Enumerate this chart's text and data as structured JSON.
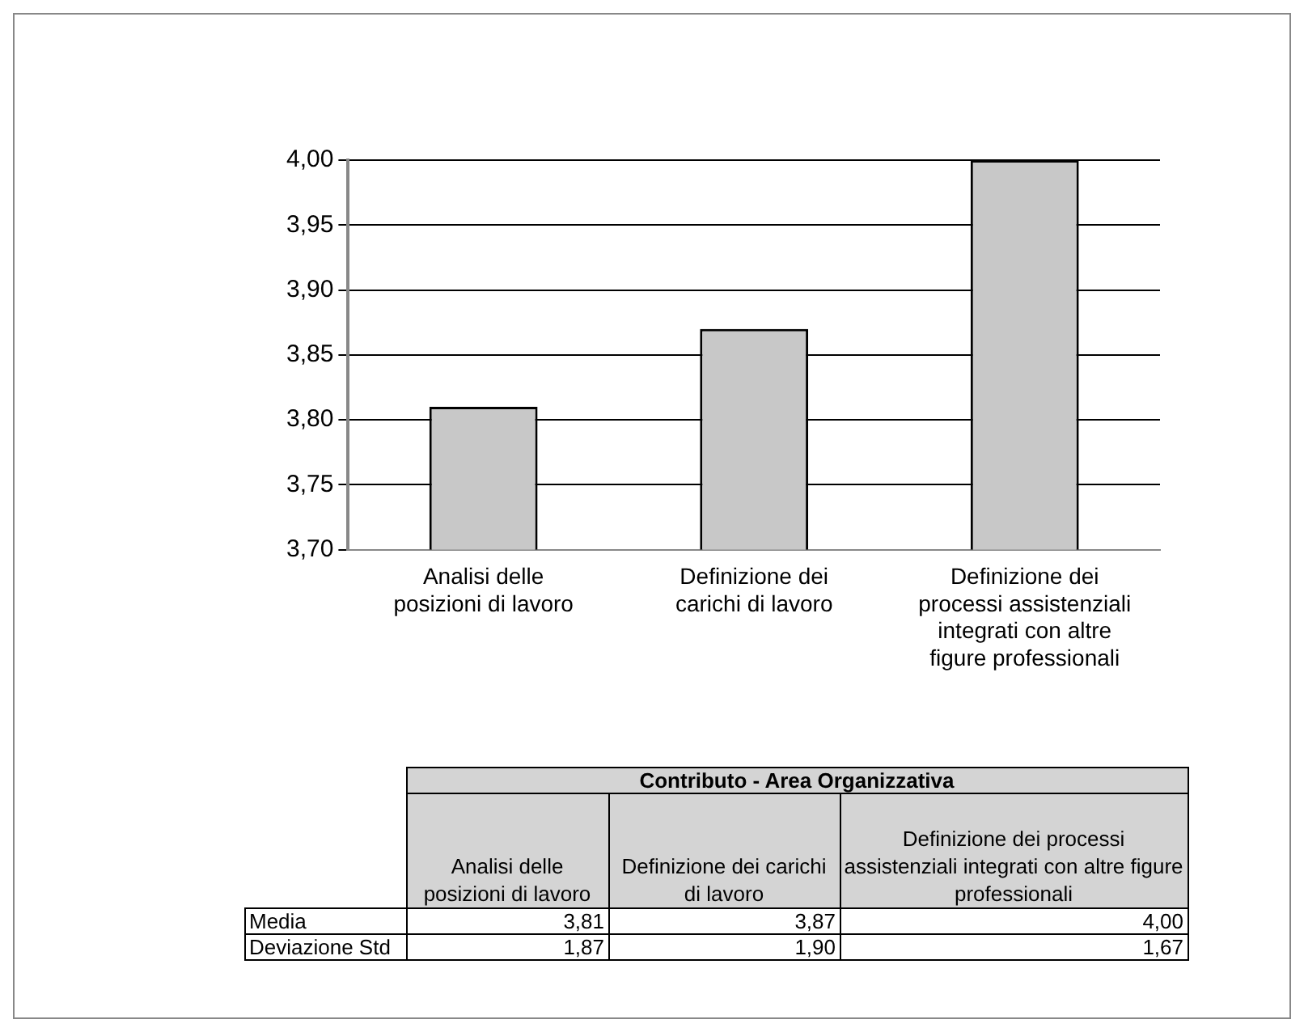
{
  "chart_data": {
    "type": "bar",
    "categories": [
      "Analisi delle posizioni di lavoro",
      "Definizione dei carichi di lavoro",
      "Definizione dei processi assistenziali integrati con altre figure professionali"
    ],
    "values": [
      3.81,
      3.87,
      4.0
    ],
    "color": "#c8c8c8",
    "ylim": [
      3.7,
      4.0
    ],
    "yticks": [
      {
        "value": 3.7,
        "label": "3,70"
      },
      {
        "value": 3.75,
        "label": "3,75"
      },
      {
        "value": 3.8,
        "label": "3,80"
      },
      {
        "value": 3.85,
        "label": "3,85"
      },
      {
        "value": 3.9,
        "label": "3,90"
      },
      {
        "value": 3.95,
        "label": "3,95"
      },
      {
        "value": 4.0,
        "label": "4,00"
      }
    ],
    "grid": "y",
    "legend": false,
    "annotations": [
      "Contributo - Area Organizzativa",
      "Media",
      "Deviazione Std",
      "3,81",
      "3,87",
      "4,00",
      "1,87",
      "1,90",
      "1,67"
    ]
  }
}
